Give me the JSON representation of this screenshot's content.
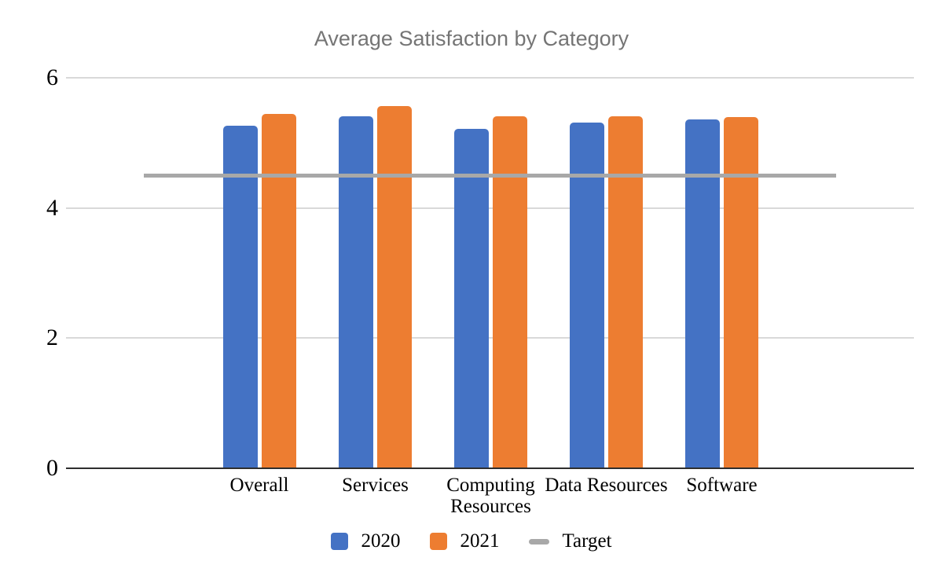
{
  "chart_data": {
    "type": "bar",
    "title": "Average Satisfaction by Category",
    "categories": [
      "Overall",
      "Services",
      "Computing Resources",
      "Data Resources",
      "Software"
    ],
    "series": [
      {
        "name": "2020",
        "color": "#4472C4",
        "values": [
          5.25,
          5.4,
          5.2,
          5.3,
          5.35
        ]
      },
      {
        "name": "2021",
        "color": "#ED7D31",
        "values": [
          5.43,
          5.55,
          5.4,
          5.4,
          5.38
        ]
      }
    ],
    "target": {
      "name": "Target",
      "value": 4.5,
      "color": "#A8A8A8"
    },
    "y_axis": {
      "min": 0,
      "max": 6,
      "ticks": [
        0,
        2,
        4,
        6
      ]
    },
    "xlabel": "",
    "ylabel": "",
    "grid": true,
    "gridline_color": "#d9d9d9",
    "axis_line_color": "#2e2e2e",
    "title_color": "#757575",
    "legend_position": "bottom"
  }
}
